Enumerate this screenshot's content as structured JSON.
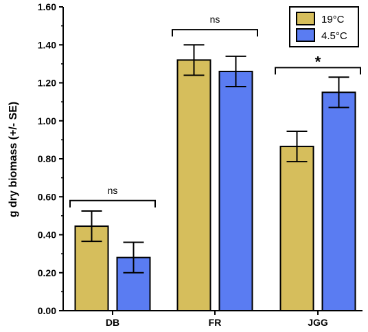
{
  "chart_data": {
    "type": "bar",
    "categories": [
      "DB",
      "FR",
      "JGG"
    ],
    "ylabel": "g dry biomass (+/- SE)",
    "ylim": [
      0,
      1.6
    ],
    "yticks": [
      "0.00",
      "0.20",
      "0.40",
      "0.60",
      "0.80",
      "1.00",
      "1.20",
      "1.40",
      "1.60"
    ],
    "legend_position": "top-right",
    "series": [
      {
        "name": "19°C",
        "color": "#D6BE5C",
        "values": [
          0.445,
          1.32,
          0.865
        ],
        "errors": [
          0.08,
          0.08,
          0.08
        ]
      },
      {
        "name": "4.5°C",
        "color": "#5A7CF2",
        "values": [
          0.28,
          1.26,
          1.15
        ],
        "errors": [
          0.08,
          0.08,
          0.08
        ]
      }
    ],
    "significance": [
      {
        "category": "DB",
        "label": "ns"
      },
      {
        "category": "FR",
        "label": "ns"
      },
      {
        "category": "JGG",
        "label": "*"
      }
    ]
  }
}
